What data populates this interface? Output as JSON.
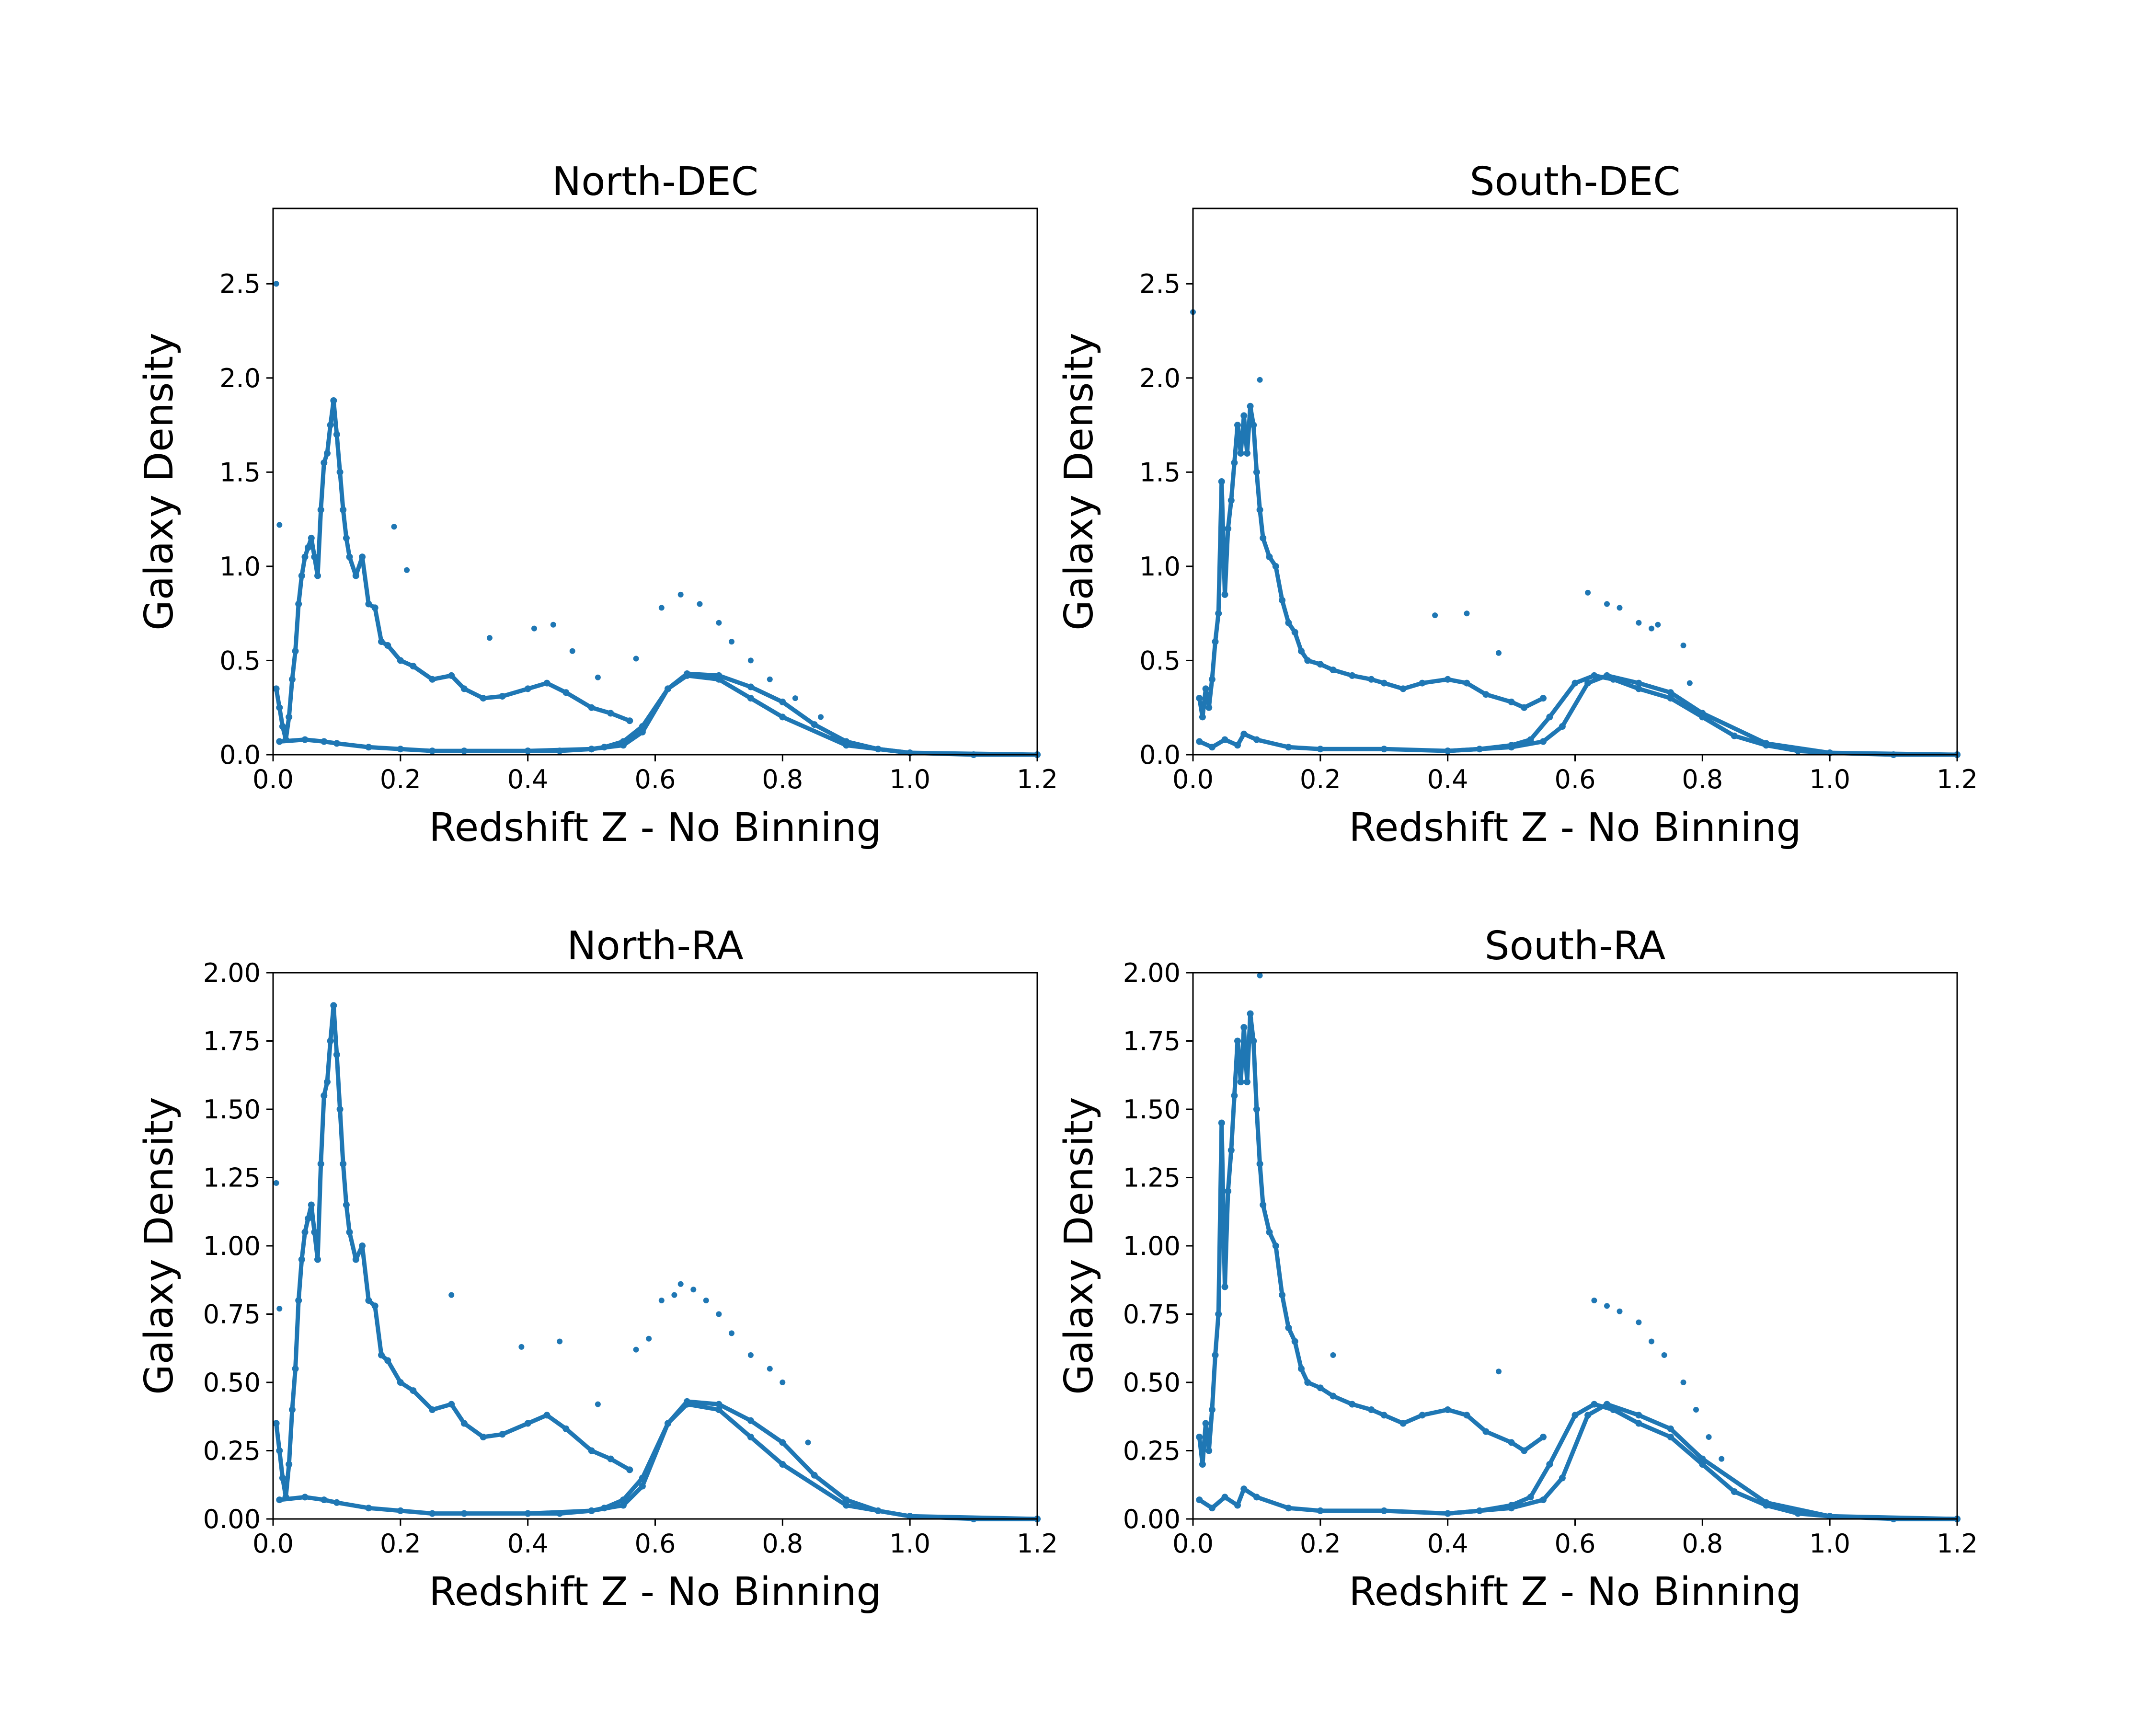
{
  "colors": {
    "series": "#1f77b4",
    "axes": "#000000"
  },
  "chart_data": [
    {
      "type": "scatter",
      "title": "North-DEC",
      "xlabel": "Redshift Z - No Binning",
      "ylabel": "Galaxy Density",
      "xlim": [
        0,
        1.2
      ],
      "ylim": [
        0,
        2.9
      ],
      "xticks": [
        "0.0",
        "0.2",
        "0.4",
        "0.6",
        "0.8",
        "1.0",
        "1.2"
      ],
      "yticks": [
        "0.0",
        "0.5",
        "1.0",
        "1.5",
        "2.0",
        "2.5"
      ],
      "series": [
        {
          "x": [
            0.005,
            0.01,
            0.015,
            0.02,
            0.025,
            0.03,
            0.035,
            0.04,
            0.045,
            0.05,
            0.055,
            0.06,
            0.065,
            0.07,
            0.075,
            0.08,
            0.085,
            0.09,
            0.095,
            0.1,
            0.105,
            0.11,
            0.115,
            0.12,
            0.13,
            0.14,
            0.15,
            0.16,
            0.17,
            0.18,
            0.2,
            0.22,
            0.25,
            0.28,
            0.3,
            0.33,
            0.36,
            0.4,
            0.43,
            0.46,
            0.5,
            0.53,
            0.56
          ],
          "y": [
            0.35,
            0.25,
            0.15,
            0.08,
            0.2,
            0.4,
            0.55,
            0.8,
            0.95,
            1.05,
            1.1,
            1.15,
            1.05,
            0.95,
            1.3,
            1.55,
            1.6,
            1.75,
            1.88,
            1.7,
            1.5,
            1.3,
            1.15,
            1.05,
            0.95,
            1.05,
            0.8,
            0.78,
            0.6,
            0.58,
            0.5,
            0.47,
            0.4,
            0.42,
            0.35,
            0.3,
            0.31,
            0.35,
            0.38,
            0.33,
            0.25,
            0.22,
            0.18
          ]
        },
        {
          "x": [
            0.01,
            0.05,
            0.08,
            0.1,
            0.15,
            0.2,
            0.25,
            0.3,
            0.4,
            0.5,
            0.55,
            0.58,
            0.62,
            0.65,
            0.7,
            0.75,
            0.8,
            0.9,
            1.0,
            1.2
          ],
          "y": [
            0.07,
            0.08,
            0.07,
            0.06,
            0.04,
            0.03,
            0.02,
            0.02,
            0.02,
            0.03,
            0.05,
            0.12,
            0.35,
            0.42,
            0.4,
            0.3,
            0.2,
            0.05,
            0.01,
            0.0
          ]
        },
        {
          "x": [
            0.4,
            0.45,
            0.5,
            0.52,
            0.55,
            0.58,
            0.62,
            0.65,
            0.7,
            0.75,
            0.8,
            0.85,
            0.9,
            0.95,
            1.0,
            1.1,
            1.2
          ],
          "y": [
            0.02,
            0.02,
            0.03,
            0.04,
            0.07,
            0.15,
            0.35,
            0.43,
            0.42,
            0.36,
            0.28,
            0.16,
            0.07,
            0.03,
            0.01,
            0.0,
            0.0
          ]
        },
        {
          "x": [
            0.005,
            0.01,
            0.19,
            0.21,
            0.34,
            0.41,
            0.44,
            0.47,
            0.51,
            0.57,
            0.61,
            0.64,
            0.67,
            0.7,
            0.72,
            0.75,
            0.78,
            0.82,
            0.86,
            0.88
          ],
          "y": [
            2.5,
            1.22,
            1.21,
            0.98,
            0.62,
            0.67,
            0.69,
            0.55,
            0.41,
            0.51,
            0.78,
            0.85,
            0.8,
            0.7,
            0.6,
            0.5,
            0.4,
            0.3,
            0.2,
            0.1
          ]
        }
      ]
    },
    {
      "type": "scatter",
      "title": "South-DEC",
      "xlabel": "Redshift Z - No Binning",
      "ylabel": "Galaxy Density",
      "xlim": [
        0,
        1.2
      ],
      "ylim": [
        0,
        2.9
      ],
      "xticks": [
        "0.0",
        "0.2",
        "0.4",
        "0.6",
        "0.8",
        "1.0",
        "1.2"
      ],
      "yticks": [
        "0.0",
        "0.5",
        "1.0",
        "1.5",
        "2.0",
        "2.5"
      ],
      "series": [
        {
          "x": [
            0.01,
            0.015,
            0.02,
            0.025,
            0.03,
            0.035,
            0.04,
            0.045,
            0.05,
            0.055,
            0.06,
            0.065,
            0.07,
            0.075,
            0.08,
            0.085,
            0.09,
            0.095,
            0.1,
            0.105,
            0.11,
            0.12,
            0.13,
            0.14,
            0.15,
            0.16,
            0.17,
            0.18,
            0.2,
            0.22,
            0.25,
            0.28,
            0.3,
            0.33,
            0.36,
            0.4,
            0.43,
            0.46,
            0.5,
            0.52,
            0.55
          ],
          "y": [
            0.3,
            0.2,
            0.35,
            0.25,
            0.4,
            0.6,
            0.75,
            1.45,
            0.85,
            1.2,
            1.35,
            1.55,
            1.75,
            1.6,
            1.8,
            1.6,
            1.85,
            1.75,
            1.5,
            1.3,
            1.15,
            1.05,
            1.0,
            0.82,
            0.7,
            0.65,
            0.55,
            0.5,
            0.48,
            0.45,
            0.42,
            0.4,
            0.38,
            0.35,
            0.38,
            0.4,
            0.38,
            0.32,
            0.28,
            0.25,
            0.3
          ]
        },
        {
          "x": [
            0.01,
            0.03,
            0.05,
            0.07,
            0.08,
            0.1,
            0.15,
            0.2,
            0.3,
            0.4,
            0.5,
            0.55,
            0.58,
            0.62,
            0.65,
            0.7,
            0.75,
            0.8,
            0.9,
            1.0,
            1.2
          ],
          "y": [
            0.07,
            0.04,
            0.08,
            0.05,
            0.11,
            0.08,
            0.04,
            0.03,
            0.03,
            0.02,
            0.04,
            0.07,
            0.15,
            0.38,
            0.42,
            0.38,
            0.33,
            0.22,
            0.06,
            0.01,
            0.0
          ]
        },
        {
          "x": [
            0.4,
            0.45,
            0.5,
            0.53,
            0.56,
            0.6,
            0.63,
            0.66,
            0.7,
            0.75,
            0.8,
            0.85,
            0.9,
            0.95,
            1.0,
            1.1,
            1.2
          ],
          "y": [
            0.02,
            0.03,
            0.05,
            0.08,
            0.2,
            0.38,
            0.42,
            0.4,
            0.35,
            0.3,
            0.2,
            0.1,
            0.05,
            0.02,
            0.01,
            0.0,
            0.0
          ]
        },
        {
          "x": [
            0.0,
            0.105,
            0.38,
            0.43,
            0.48,
            0.62,
            0.65,
            0.67,
            0.7,
            0.72,
            0.73,
            0.77,
            0.78
          ],
          "y": [
            2.35,
            1.99,
            0.74,
            0.75,
            0.54,
            0.86,
            0.8,
            0.78,
            0.7,
            0.67,
            0.69,
            0.58,
            0.38
          ]
        }
      ]
    },
    {
      "type": "scatter",
      "title": "North-RA",
      "xlabel": "Redshift Z - No Binning",
      "ylabel": "Galaxy Density",
      "xlim": [
        0,
        1.2
      ],
      "ylim": [
        0,
        2.0
      ],
      "xticks": [
        "0.0",
        "0.2",
        "0.4",
        "0.6",
        "0.8",
        "1.0",
        "1.2"
      ],
      "yticks": [
        "0.00",
        "0.25",
        "0.50",
        "0.75",
        "1.00",
        "1.25",
        "1.50",
        "1.75",
        "2.00"
      ],
      "series": [
        {
          "x": [
            0.005,
            0.01,
            0.015,
            0.02,
            0.025,
            0.03,
            0.035,
            0.04,
            0.045,
            0.05,
            0.055,
            0.06,
            0.065,
            0.07,
            0.075,
            0.08,
            0.085,
            0.09,
            0.095,
            0.1,
            0.105,
            0.11,
            0.115,
            0.12,
            0.13,
            0.14,
            0.15,
            0.16,
            0.17,
            0.18,
            0.2,
            0.22,
            0.25,
            0.28,
            0.3,
            0.33,
            0.36,
            0.4,
            0.43,
            0.46,
            0.5,
            0.53,
            0.56
          ],
          "y": [
            0.35,
            0.25,
            0.15,
            0.08,
            0.2,
            0.4,
            0.55,
            0.8,
            0.95,
            1.05,
            1.1,
            1.15,
            1.05,
            0.95,
            1.3,
            1.55,
            1.6,
            1.75,
            1.88,
            1.7,
            1.5,
            1.3,
            1.15,
            1.05,
            0.95,
            1.0,
            0.8,
            0.78,
            0.6,
            0.58,
            0.5,
            0.47,
            0.4,
            0.42,
            0.35,
            0.3,
            0.31,
            0.35,
            0.38,
            0.33,
            0.25,
            0.22,
            0.18
          ]
        },
        {
          "x": [
            0.01,
            0.05,
            0.08,
            0.1,
            0.15,
            0.2,
            0.25,
            0.3,
            0.4,
            0.5,
            0.55,
            0.58,
            0.62,
            0.65,
            0.7,
            0.75,
            0.8,
            0.9,
            1.0,
            1.2
          ],
          "y": [
            0.07,
            0.08,
            0.07,
            0.06,
            0.04,
            0.03,
            0.02,
            0.02,
            0.02,
            0.03,
            0.05,
            0.12,
            0.35,
            0.42,
            0.4,
            0.3,
            0.2,
            0.05,
            0.01,
            0.0
          ]
        },
        {
          "x": [
            0.4,
            0.45,
            0.5,
            0.52,
            0.55,
            0.58,
            0.62,
            0.65,
            0.7,
            0.75,
            0.8,
            0.85,
            0.9,
            0.95,
            1.0,
            1.1,
            1.2
          ],
          "y": [
            0.02,
            0.02,
            0.03,
            0.04,
            0.07,
            0.15,
            0.35,
            0.43,
            0.42,
            0.36,
            0.28,
            0.16,
            0.07,
            0.03,
            0.01,
            0.0,
            0.0
          ]
        },
        {
          "x": [
            0.005,
            0.01,
            0.28,
            0.39,
            0.45,
            0.51,
            0.57,
            0.59,
            0.61,
            0.63,
            0.64,
            0.66,
            0.68,
            0.7,
            0.72,
            0.75,
            0.78,
            0.8,
            0.84,
            0.9
          ],
          "y": [
            1.23,
            0.77,
            0.82,
            0.63,
            0.65,
            0.42,
            0.62,
            0.66,
            0.8,
            0.82,
            0.86,
            0.84,
            0.8,
            0.75,
            0.68,
            0.6,
            0.55,
            0.5,
            0.28,
            0.07
          ]
        }
      ]
    },
    {
      "type": "scatter",
      "title": "South-RA",
      "xlabel": "Redshift Z - No Binning",
      "ylabel": "Galaxy Density",
      "xlim": [
        0,
        1.2
      ],
      "ylim": [
        0,
        2.0
      ],
      "xticks": [
        "0.0",
        "0.2",
        "0.4",
        "0.6",
        "0.8",
        "1.0",
        "1.2"
      ],
      "yticks": [
        "0.00",
        "0.25",
        "0.50",
        "0.75",
        "1.00",
        "1.25",
        "1.50",
        "1.75",
        "2.00"
      ],
      "series": [
        {
          "x": [
            0.01,
            0.015,
            0.02,
            0.025,
            0.03,
            0.035,
            0.04,
            0.045,
            0.05,
            0.055,
            0.06,
            0.065,
            0.07,
            0.075,
            0.08,
            0.085,
            0.09,
            0.095,
            0.1,
            0.105,
            0.11,
            0.12,
            0.13,
            0.14,
            0.15,
            0.16,
            0.17,
            0.18,
            0.2,
            0.22,
            0.25,
            0.28,
            0.3,
            0.33,
            0.36,
            0.4,
            0.43,
            0.46,
            0.5,
            0.52,
            0.55
          ],
          "y": [
            0.3,
            0.2,
            0.35,
            0.25,
            0.4,
            0.6,
            0.75,
            1.45,
            0.85,
            1.2,
            1.35,
            1.55,
            1.75,
            1.6,
            1.8,
            1.6,
            1.85,
            1.75,
            1.5,
            1.3,
            1.15,
            1.05,
            1.0,
            0.82,
            0.7,
            0.65,
            0.55,
            0.5,
            0.48,
            0.45,
            0.42,
            0.4,
            0.38,
            0.35,
            0.38,
            0.4,
            0.38,
            0.32,
            0.28,
            0.25,
            0.3
          ]
        },
        {
          "x": [
            0.01,
            0.03,
            0.05,
            0.07,
            0.08,
            0.1,
            0.15,
            0.2,
            0.3,
            0.4,
            0.5,
            0.55,
            0.58,
            0.62,
            0.65,
            0.7,
            0.75,
            0.8,
            0.9,
            1.0,
            1.2
          ],
          "y": [
            0.07,
            0.04,
            0.08,
            0.05,
            0.11,
            0.08,
            0.04,
            0.03,
            0.03,
            0.02,
            0.04,
            0.07,
            0.15,
            0.38,
            0.42,
            0.38,
            0.33,
            0.22,
            0.06,
            0.01,
            0.0
          ]
        },
        {
          "x": [
            0.4,
            0.45,
            0.5,
            0.53,
            0.56,
            0.6,
            0.63,
            0.66,
            0.7,
            0.75,
            0.8,
            0.85,
            0.9,
            0.95,
            1.0,
            1.1,
            1.2
          ],
          "y": [
            0.02,
            0.03,
            0.05,
            0.08,
            0.2,
            0.38,
            0.42,
            0.4,
            0.35,
            0.3,
            0.2,
            0.1,
            0.05,
            0.02,
            0.01,
            0.0,
            0.0
          ]
        },
        {
          "x": [
            0.105,
            0.22,
            0.48,
            0.63,
            0.65,
            0.67,
            0.7,
            0.72,
            0.74,
            0.77,
            0.79,
            0.81,
            0.83
          ],
          "y": [
            1.99,
            0.6,
            0.54,
            0.8,
            0.78,
            0.76,
            0.72,
            0.65,
            0.6,
            0.5,
            0.4,
            0.3,
            0.22
          ]
        }
      ]
    }
  ]
}
